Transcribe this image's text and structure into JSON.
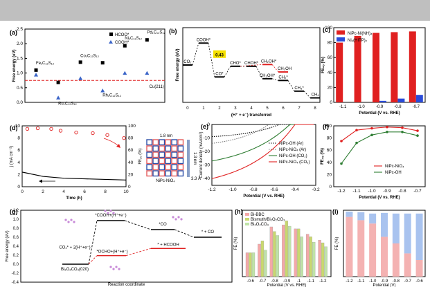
{
  "panels": {
    "a": {
      "label": "(a)"
    },
    "b": {
      "label": "(b)"
    },
    "c": {
      "label": "(c)"
    },
    "d": {
      "label": "(d)"
    },
    "e": {
      "label": "(e)"
    },
    "f": {
      "label": "(f)"
    },
    "g": {
      "label": "(g)"
    },
    "h": {
      "label": "(h)"
    },
    "i": {
      "label": "(i)"
    }
  },
  "colors": {
    "black": "#000000",
    "red": "#e02020",
    "blue": "#3a64c8",
    "green": "#2e7d32",
    "salmon": "#f4a8a8",
    "lightblue": "#a9c3ef",
    "lightgreen": "#bfe3a8",
    "olive": "#d8d48a"
  },
  "chart_data": [
    {
      "id": "a",
      "type": "scatter",
      "ylabel": "Free energy (eV)",
      "ylim": [
        0,
        2.5
      ],
      "yticks": [
        0.0,
        0.5,
        1.0,
        1.5,
        2.0,
        2.5
      ],
      "series": [
        {
          "name": "HCOO*",
          "marker": "square",
          "color": "#000000",
          "points": [
            [
              1,
              1.1
            ],
            [
              2,
              0.68
            ],
            [
              3,
              1.37
            ],
            [
              4,
              1.35
            ],
            [
              5,
              1.93
            ],
            [
              6,
              2.13
            ]
          ]
        },
        {
          "name": "COOH*",
          "marker": "triangle",
          "color": "#3a64c8",
          "points": [
            [
              1,
              0.94
            ],
            [
              2,
              0.16
            ],
            [
              3,
              0.82
            ],
            [
              4,
              0.4
            ],
            [
              5,
              1.0
            ],
            [
              6,
              1.0
            ]
          ]
        }
      ],
      "reference": {
        "value": 0.75,
        "color": "#e02020",
        "style": "dashed"
      },
      "annotations": [
        {
          "text": "Fe₁C₁₂S₁₂",
          "x": 1,
          "y": 1.3
        },
        {
          "text": "Ru₁C₁₂S₁₂",
          "x": 2,
          "y": -0.08
        },
        {
          "text": "Co₁C₁₂S₁₂",
          "x": 3,
          "y": 1.55
        },
        {
          "text": "Rh₁C₁₂S₁₂",
          "x": 4,
          "y": 0.2
        },
        {
          "text": "Ni₁C₁₂S₁₂",
          "x": 5,
          "y": 2.15
        },
        {
          "text": "Pd₁C₁₂S₁₂",
          "x": 6,
          "y": 2.35
        },
        {
          "text": "Cu(211)",
          "x": 6.1,
          "y": 0.5
        }
      ]
    },
    {
      "id": "b",
      "type": "line",
      "xlabel": "(H⁺ + e⁻) transferred",
      "ylabel": "Free energy (eV)",
      "xlim": [
        0,
        8
      ],
      "xticks": [
        0,
        1,
        2,
        3,
        4,
        5,
        6,
        7,
        8
      ],
      "ylim": [
        -1.5,
        1.5
      ],
      "steps": [
        {
          "x": 0,
          "y": 0.0,
          "label": "CO₂"
        },
        {
          "x": 1,
          "y": 0.88,
          "label": "COOH*"
        },
        {
          "x": 2,
          "y": -0.48,
          "label": "CO*"
        },
        {
          "x": 3,
          "y": -0.05,
          "label": "CHO*"
        },
        {
          "x": 4,
          "y": -0.05,
          "label": "CHOH*"
        },
        {
          "x": 5,
          "y": -0.55,
          "label": "CH₂OH*"
        },
        {
          "x": 6,
          "y": -0.62,
          "label": "CH₂*"
        },
        {
          "x": 7,
          "y": -1.05,
          "label": "CH₃*"
        },
        {
          "x": 8,
          "y": -1.32,
          "label": "CH₄"
        }
      ],
      "branch": [
        {
          "x": 5,
          "y": 0.02,
          "label": "CH₂OH*"
        },
        {
          "x": 6,
          "y": -0.28,
          "label": "CH₃OH"
        }
      ],
      "highlight": {
        "text": "0.43",
        "color": "#f5e000"
      }
    },
    {
      "id": "c",
      "type": "bar",
      "xlabel": "Potential (V vs. RHE)",
      "ylabel": "FE₂ₒ (%)",
      "categories": [
        "-1.1",
        "-1.0",
        "-0.9",
        "-0.8",
        "-0.7"
      ],
      "ylim": [
        0,
        100
      ],
      "yticks": [
        0,
        20,
        40,
        60,
        80,
        100
      ],
      "series": [
        {
          "name": "NiPc-Ni(NH)₄",
          "color": "#e02020",
          "values": [
            80,
            89,
            93,
            94,
            95
          ]
        },
        {
          "name": "Ni₃(HITP)₂",
          "color": "#2a4bd8",
          "values": [
            0,
            0,
            2,
            5,
            10
          ]
        }
      ]
    },
    {
      "id": "d",
      "type": "line",
      "xlabel": "Time (h)",
      "ylabel": "j (mA cm⁻²)",
      "y2label": "FE₂ₒ (%)",
      "xlim": [
        0,
        10
      ],
      "ylim": [
        0,
        10
      ],
      "y2lim": [
        0,
        100
      ],
      "current": [
        [
          0,
          2.4
        ],
        [
          2,
          1.7
        ],
        [
          4,
          1.4
        ],
        [
          6,
          1.3
        ],
        [
          8,
          1.2
        ],
        [
          10,
          1.1
        ]
      ],
      "fe": [
        [
          0.5,
          95
        ],
        [
          1.5,
          96
        ],
        [
          2.8,
          95
        ],
        [
          3.7,
          92
        ],
        [
          5.2,
          89
        ],
        [
          6.8,
          88
        ],
        [
          8.2,
          85
        ],
        [
          9.8,
          80
        ]
      ],
      "structure_label": "NiPc-NiO₄",
      "dims": [
        "1.8 nm",
        "1.3 nm",
        "3.3 Å"
      ]
    },
    {
      "id": "e",
      "type": "line",
      "xlabel": "Potential (V vs. RHE)",
      "ylabel": "Current density (mA/cm²)",
      "xlim": [
        -1.2,
        -0.2
      ],
      "ylim": [
        -45,
        0
      ],
      "series": [
        {
          "name": "NiPc-OH (Ar)",
          "style": "dotted",
          "color": "#000000"
        },
        {
          "name": "NiPc-NiO₄ (Ar)",
          "style": "dotted",
          "color": "#777777"
        },
        {
          "name": "NiPc-OH (CO₂)",
          "style": "solid",
          "color": "#2e7d32"
        },
        {
          "name": "NiPc-NiO₄ (CO₂)",
          "style": "solid",
          "color": "#e02020"
        }
      ]
    },
    {
      "id": "f",
      "type": "line",
      "xlabel": "Potential (V vs. RHE)",
      "ylabel": "FE₂ₒ (%)",
      "x": [
        -1.2,
        -1.1,
        -1.0,
        -0.9,
        -0.8,
        -0.7
      ],
      "ylim": [
        0,
        100
      ],
      "yticks": [
        0,
        20,
        40,
        60,
        80,
        100
      ],
      "series": [
        {
          "name": "NiPc-NiO₄",
          "color": "#e02020",
          "values": [
            75,
            93,
            96,
            98,
            97,
            92
          ]
        },
        {
          "name": "NiPc-OH",
          "color": "#2e7d32",
          "values": [
            38,
            72,
            85,
            90,
            90,
            84
          ]
        }
      ]
    },
    {
      "id": "g",
      "type": "line",
      "xlabel": "Reaction coordinate",
      "ylabel": "Free energy (eV)",
      "ylim": [
        -0.4,
        1.2
      ],
      "yticks": [
        -0.4,
        -0.2,
        0.0,
        0.2,
        0.4,
        0.6,
        0.8,
        1.0,
        1.2
      ],
      "paths": [
        {
          "name": "COOH path",
          "color": "#000000",
          "levels": [
            {
              "y": 0.0,
              "label": "CO₂* + 2(H⁺+e⁻)"
            },
            {
              "y": 0.97,
              "label": "*COOH+(H⁺+e⁻)"
            },
            {
              "y": 0.77,
              "label": "*CO"
            },
            {
              "y": 0.6,
              "label": "* + CO"
            }
          ]
        },
        {
          "name": "OCHO path",
          "color": "#e02020",
          "levels": [
            {
              "y": 0.0,
              "label": ""
            },
            {
              "y": 0.19,
              "label": "*OCHO+(H⁺+e⁻)"
            },
            {
              "y": 0.35,
              "label": "* + HCOOH"
            }
          ]
        }
      ],
      "surface_label": "Bi₂O₂CO₃(020)"
    },
    {
      "id": "h",
      "type": "bar",
      "xlabel": "Potential (V vs. RHE)",
      "ylabel": "FE (%)",
      "categories": [
        "-0.6",
        "-0.7",
        "-0.8",
        "-0.9",
        "-1",
        "-1.1",
        "-1.2"
      ],
      "ylim": [
        0,
        100
      ],
      "series": [
        {
          "name": "Bi-BBC",
          "color": "#f4a8a8",
          "values": [
            36,
            49,
            75,
            78,
            72,
            64,
            55
          ]
        },
        {
          "name": "Bismuth/Bi₂O₂CO₃",
          "color": "#c9d86e",
          "values": [
            36,
            54,
            68,
            84,
            72,
            60,
            51
          ]
        },
        {
          "name": "Bi₂O₂CO₃",
          "color": "#bfe3a8",
          "values": [
            36,
            40,
            62,
            76,
            60,
            52,
            45
          ]
        }
      ]
    },
    {
      "id": "i",
      "type": "bar",
      "stacked": true,
      "xlabel": "Potential (V)",
      "ylabel": "FE (%)",
      "categories": [
        "-1.2",
        "-1.1",
        "-1.0",
        "-0.9",
        "-0.8",
        "-0.7",
        "-0.6"
      ],
      "ylim": [
        0,
        100
      ],
      "series": [
        {
          "name": "HCOOH",
          "color": "#f4b2b2",
          "values": [
            90,
            85,
            80,
            60,
            50,
            35,
            25
          ]
        },
        {
          "name": "H₂",
          "color": "#a9c3ef",
          "values": [
            8,
            12,
            15,
            36,
            45,
            60,
            70
          ]
        }
      ]
    }
  ]
}
